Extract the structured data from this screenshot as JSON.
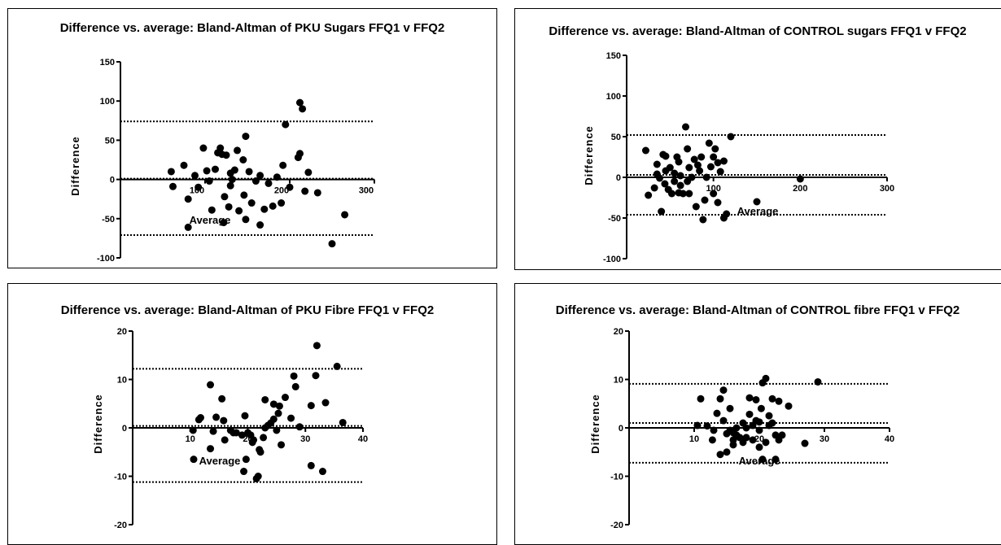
{
  "chart_data": [
    {
      "type": "scatter",
      "title": "Difference vs. average: Bland-Altman of PKU Sugars FFQ1 v FFQ2",
      "xlabel": "Average",
      "ylabel": "Difference",
      "xlim": [
        0,
        300
      ],
      "ylim": [
        -100,
        150
      ],
      "xticks": [
        100,
        200,
        300
      ],
      "yticks": [
        -100,
        -50,
        0,
        50,
        100,
        150
      ],
      "reference_lines": {
        "upper_loa": 74,
        "bias": 1,
        "lower_loa": -71
      },
      "points": [
        [
          60,
          10
        ],
        [
          62,
          -9
        ],
        [
          75,
          18
        ],
        [
          80,
          -25
        ],
        [
          80,
          -61
        ],
        [
          88,
          5
        ],
        [
          92,
          -10
        ],
        [
          98,
          40
        ],
        [
          102,
          11
        ],
        [
          105,
          -2
        ],
        [
          108,
          -39
        ],
        [
          112,
          13
        ],
        [
          115,
          34
        ],
        [
          118,
          40
        ],
        [
          120,
          32
        ],
        [
          122,
          -55
        ],
        [
          123,
          -22
        ],
        [
          125,
          31
        ],
        [
          128,
          -35
        ],
        [
          130,
          -8
        ],
        [
          130,
          8
        ],
        [
          135,
          12
        ],
        [
          138,
          37
        ],
        [
          140,
          -40
        ],
        [
          145,
          25
        ],
        [
          146,
          -20
        ],
        [
          148,
          -51
        ],
        [
          148,
          55
        ],
        [
          152,
          10
        ],
        [
          155,
          -30
        ],
        [
          160,
          -2
        ],
        [
          165,
          -58
        ],
        [
          165,
          5
        ],
        [
          170,
          -38
        ],
        [
          175,
          -5
        ],
        [
          180,
          -34
        ],
        [
          185,
          3
        ],
        [
          190,
          -30
        ],
        [
          192,
          18
        ],
        [
          195,
          70
        ],
        [
          200,
          -10
        ],
        [
          210,
          28
        ],
        [
          212,
          33
        ],
        [
          212,
          98
        ],
        [
          215,
          90
        ],
        [
          218,
          -15
        ],
        [
          222,
          9
        ],
        [
          233,
          -17
        ],
        [
          250,
          -82
        ],
        [
          265,
          -45
        ],
        [
          132,
          0
        ]
      ]
    },
    {
      "type": "scatter",
      "title": "Difference vs. average: Bland-Altman of CONTROL sugars FFQ1 v FFQ2",
      "xlabel": "Average",
      "ylabel": "Difference",
      "xlim": [
        0,
        300
      ],
      "ylim": [
        -100,
        150
      ],
      "xticks": [
        100,
        200,
        300
      ],
      "yticks": [
        -100,
        -50,
        0,
        50,
        100,
        150
      ],
      "reference_lines": {
        "upper_loa": 52,
        "bias": 3,
        "lower_loa": -46
      },
      "points": [
        [
          22,
          33
        ],
        [
          25,
          -22
        ],
        [
          32,
          -13
        ],
        [
          35,
          16
        ],
        [
          35,
          4
        ],
        [
          38,
          -1
        ],
        [
          40,
          -42
        ],
        [
          42,
          28
        ],
        [
          44,
          -8
        ],
        [
          45,
          8
        ],
        [
          45,
          26
        ],
        [
          48,
          -15
        ],
        [
          50,
          12
        ],
        [
          52,
          -20
        ],
        [
          55,
          -5
        ],
        [
          55,
          5
        ],
        [
          58,
          25
        ],
        [
          60,
          -19
        ],
        [
          60,
          19
        ],
        [
          62,
          -10
        ],
        [
          65,
          -20
        ],
        [
          68,
          62
        ],
        [
          70,
          35
        ],
        [
          72,
          -20
        ],
        [
          72,
          12
        ],
        [
          75,
          0
        ],
        [
          78,
          22
        ],
        [
          80,
          -36
        ],
        [
          82,
          15
        ],
        [
          84,
          8
        ],
        [
          86,
          25
        ],
        [
          88,
          -52
        ],
        [
          90,
          -28
        ],
        [
          92,
          0
        ],
        [
          95,
          42
        ],
        [
          97,
          13
        ],
        [
          100,
          -20
        ],
        [
          100,
          25
        ],
        [
          102,
          35
        ],
        [
          105,
          -31
        ],
        [
          105,
          18
        ],
        [
          108,
          7
        ],
        [
          112,
          -50
        ],
        [
          112,
          20
        ],
        [
          115,
          -45
        ],
        [
          120,
          50
        ],
        [
          150,
          -30
        ],
        [
          200,
          -2
        ],
        [
          62,
          2
        ],
        [
          70,
          -5
        ]
      ]
    },
    {
      "type": "scatter",
      "title": "Difference vs. average: Bland-Altman of PKU Fibre FFQ1 v FFQ2",
      "xlabel": "Average",
      "ylabel": "Difference",
      "xlim": [
        0,
        40
      ],
      "ylim": [
        -20,
        20
      ],
      "xticks": [
        10,
        20,
        30,
        40
      ],
      "yticks": [
        -20,
        -10,
        0,
        10,
        20
      ],
      "reference_lines": {
        "upper_loa": 12.2,
        "bias": 0.4,
        "lower_loa": -11.2
      },
      "points": [
        [
          10.5,
          -0.5
        ],
        [
          10.6,
          -6.5
        ],
        [
          11.5,
          1.7
        ],
        [
          11.8,
          2.1
        ],
        [
          13.5,
          -4.3
        ],
        [
          13.5,
          8.9
        ],
        [
          14,
          -0.7
        ],
        [
          14.5,
          2.2
        ],
        [
          15.5,
          6
        ],
        [
          15.8,
          1.5
        ],
        [
          16,
          -2.5
        ],
        [
          17,
          -0.5
        ],
        [
          17.5,
          -1
        ],
        [
          18,
          -1
        ],
        [
          19,
          -1.5
        ],
        [
          19.3,
          -9
        ],
        [
          19.5,
          2.5
        ],
        [
          19.7,
          -6.5
        ],
        [
          20,
          -1
        ],
        [
          20.5,
          -1.5
        ],
        [
          20.8,
          -3
        ],
        [
          21,
          -2.5
        ],
        [
          21.5,
          -10.5
        ],
        [
          21.8,
          -10
        ],
        [
          22,
          -4.5
        ],
        [
          22.2,
          -5
        ],
        [
          22.7,
          -2
        ],
        [
          23,
          5.8
        ],
        [
          23,
          0
        ],
        [
          23.5,
          0.5
        ],
        [
          24,
          1
        ],
        [
          24.5,
          1.8
        ],
        [
          24.5,
          4.9
        ],
        [
          25,
          -0.5
        ],
        [
          25.3,
          3
        ],
        [
          25.5,
          4.5
        ],
        [
          25.8,
          -3.5
        ],
        [
          26.5,
          6.3
        ],
        [
          27.5,
          2
        ],
        [
          28,
          10.7
        ],
        [
          28.3,
          8.5
        ],
        [
          29,
          0.2
        ],
        [
          31,
          -7.8
        ],
        [
          31,
          4.6
        ],
        [
          31.8,
          10.8
        ],
        [
          32,
          17
        ],
        [
          33,
          -9
        ],
        [
          33.5,
          5.2
        ],
        [
          35.5,
          12.7
        ],
        [
          36.5,
          1.1
        ]
      ]
    },
    {
      "type": "scatter",
      "title": "Difference vs. average: Bland-Altman of CONTROL fibre FFQ1 v FFQ2",
      "xlabel": "Average",
      "ylabel": "Difference",
      "xlim": [
        0,
        40
      ],
      "ylim": [
        -20,
        20
      ],
      "xticks": [
        10,
        20,
        30,
        40
      ],
      "yticks": [
        -20,
        -10,
        0,
        10,
        20
      ],
      "reference_lines": {
        "upper_loa": 9.1,
        "bias": 1,
        "lower_loa": -7.2
      },
      "points": [
        [
          10.5,
          0.5
        ],
        [
          11,
          6
        ],
        [
          12,
          0.4
        ],
        [
          12.8,
          -2.5
        ],
        [
          13,
          -0.5
        ],
        [
          13.5,
          3
        ],
        [
          14,
          -5.5
        ],
        [
          14,
          6
        ],
        [
          14.5,
          7.8
        ],
        [
          14.5,
          1.5
        ],
        [
          15,
          -1.2
        ],
        [
          15,
          -5
        ],
        [
          15.5,
          -0.5
        ],
        [
          15.5,
          4
        ],
        [
          16,
          -2.5
        ],
        [
          16,
          -3.5
        ],
        [
          16.5,
          0
        ],
        [
          16.5,
          -1.5
        ],
        [
          17,
          -2
        ],
        [
          17.5,
          -3
        ],
        [
          17.5,
          1
        ],
        [
          18,
          -2
        ],
        [
          18.5,
          2.8
        ],
        [
          18.5,
          6.2
        ],
        [
          19,
          0.5
        ],
        [
          19,
          -2.5
        ],
        [
          19.5,
          5.8
        ],
        [
          20,
          -0.5
        ],
        [
          20,
          -4
        ],
        [
          20.3,
          4
        ],
        [
          20.5,
          9.3
        ],
        [
          20.5,
          -6.5
        ],
        [
          21,
          10.2
        ],
        [
          21,
          -3
        ],
        [
          21.5,
          0.5
        ],
        [
          21.5,
          2.5
        ],
        [
          22,
          1
        ],
        [
          22,
          6
        ],
        [
          22.5,
          -6.5
        ],
        [
          22.5,
          -1.5
        ],
        [
          23,
          5.5
        ],
        [
          23,
          -2.5
        ],
        [
          23.5,
          -1.5
        ],
        [
          24.5,
          4.5
        ],
        [
          27,
          -3.2
        ],
        [
          29,
          9.5
        ],
        [
          18,
          0
        ],
        [
          19.5,
          1.5
        ],
        [
          20,
          1.2
        ],
        [
          16,
          -1
        ]
      ]
    }
  ]
}
